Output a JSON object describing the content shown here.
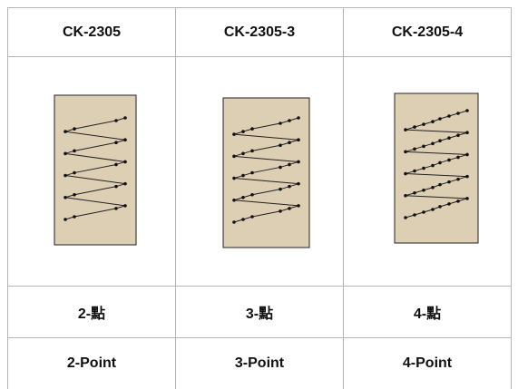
{
  "table": {
    "header": [
      "CK-2305",
      "CK-2305-3",
      "CK-2305-4"
    ],
    "rows": [
      [
        "2-點",
        "3-點",
        "4-點"
      ],
      [
        "2-Point",
        "3-Point",
        "4-Point"
      ]
    ]
  }
}
